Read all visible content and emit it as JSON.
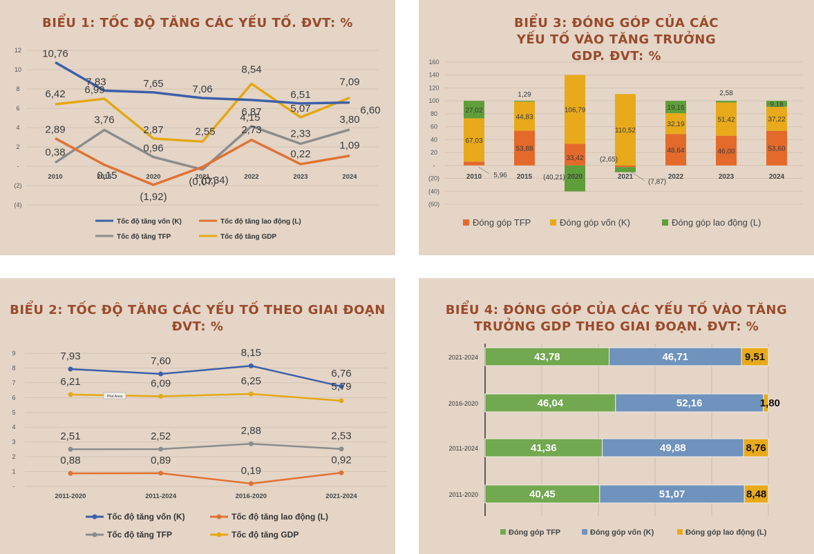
{
  "colors": {
    "panel_bg": "#e4d5c7",
    "title": "#9a4a2a",
    "capital": "#3c5fa8",
    "labor": "#e07232",
    "tfp": "#8c8c8c",
    "gdp": "#e3a812",
    "c_tfp": "#e36a2b",
    "c_capital": "#e8aa1a",
    "c_labor": "#5f9e3a",
    "h_tfp": "#72a850",
    "h_capital": "#6f93bd",
    "h_labor": "#e8aa1a"
  },
  "chart_data": [
    {
      "id": "c1",
      "type": "line",
      "title": "BIỂU 1: TỐC ĐỘ TĂNG CÁC YẾU TỐ. ĐVT: %",
      "categories": [
        "2010",
        "2015",
        "2020",
        "2021",
        "2022",
        "2023",
        "2024"
      ],
      "y_ticks": [
        "12",
        "10",
        "8",
        "6",
        "4",
        "2",
        "-",
        "(2)",
        "(4)"
      ],
      "ylim": [
        -4,
        12
      ],
      "series": [
        {
          "name": "Tốc độ tăng vốn (K)",
          "color_key": "capital",
          "values": [
            10.76,
            7.83,
            7.65,
            7.06,
            6.87,
            6.51,
            6.6
          ],
          "labels": [
            "10,76",
            "7,83",
            "7,65",
            "7,06",
            "6,87",
            "6,51",
            "6,60"
          ]
        },
        {
          "name": "Tốc độ tăng lao động (L)",
          "color_key": "labor",
          "values": [
            2.89,
            0.15,
            -1.92,
            -0.07,
            2.73,
            0.22,
            1.09
          ],
          "labels": [
            "2,89",
            "0,15",
            "(1,92)",
            "(0,07)",
            "2,73",
            "0,22",
            "1,09"
          ]
        },
        {
          "name": "Tốc độ tăng TFP",
          "color_key": "tfp",
          "values": [
            0.38,
            3.76,
            0.96,
            -0.34,
            4.15,
            2.33,
            3.8
          ],
          "labels": [
            "0,38",
            "3,76",
            "0,96",
            "(0,34)",
            "4,15",
            "2,33",
            "3,80"
          ]
        },
        {
          "name": "Tốc độ tăng GDP",
          "color_key": "gdp",
          "values": [
            6.42,
            6.99,
            2.87,
            2.55,
            8.54,
            5.07,
            7.09
          ],
          "labels": [
            "6,42",
            "6,99",
            "2,87",
            "2,55",
            "8,54",
            "5,07",
            "7,09"
          ]
        }
      ],
      "legend": [
        "Tốc độ tăng vốn (K)",
        "Tốc độ tăng lao động (L)",
        "Tốc độ tăng TFP",
        "Tốc độ tăng GDP"
      ]
    },
    {
      "id": "c2",
      "type": "line",
      "title": "BIỂU 2: TỐC ĐỘ TĂNG CÁC YẾU TỐ THEO GIAI ĐOẠN ĐVT: %",
      "categories": [
        "2011-2020",
        "2011-2024",
        "2016-2020",
        "2021-2024"
      ],
      "y_ticks": [
        "9",
        "8",
        "7",
        "6",
        "5",
        "4",
        "3",
        "2",
        "1",
        "-"
      ],
      "ylim": [
        0,
        9
      ],
      "series": [
        {
          "name": "Tốc độ tăng vốn (K)",
          "color_key": "capital",
          "values": [
            7.93,
            7.6,
            8.15,
            6.76
          ],
          "labels": [
            "7,93",
            "7,60",
            "8,15",
            "6,76"
          ]
        },
        {
          "name": "Tốc độ tăng lao động (L)",
          "color_key": "labor",
          "values": [
            0.88,
            0.89,
            0.19,
            0.92
          ],
          "labels": [
            "0,88",
            "0,89",
            "0,19",
            "0,92"
          ]
        },
        {
          "name": "Tốc độ tăng TFP",
          "color_key": "tfp",
          "values": [
            2.51,
            2.52,
            2.88,
            2.53
          ],
          "labels": [
            "2,51",
            "2,52",
            "2,88",
            "2,53"
          ]
        },
        {
          "name": "Tốc độ tăng GDP",
          "color_key": "gdp",
          "values": [
            6.21,
            6.09,
            6.25,
            5.79
          ],
          "labels": [
            "6,21",
            "6,09",
            "6,25",
            "5,79"
          ]
        }
      ],
      "annotation": "Plot Area",
      "legend": [
        "Tốc độ tăng vốn (K)",
        "Tốc độ tăng lao động (L)",
        "Tốc độ tăng TFP",
        "Tốc độ tăng GDP"
      ]
    },
    {
      "id": "c3",
      "type": "bar",
      "stacked": true,
      "title": "BIỂU 3: ĐÓNG GÓP CỦA CÁC YẾU TỐ VÀO TĂNG TRƯỞNG GDP. ĐVT: %",
      "categories": [
        "2010",
        "2015",
        "2020",
        "2021",
        "2022",
        "2023",
        "2024"
      ],
      "y_ticks": [
        "160",
        "140",
        "120",
        "100",
        "80",
        "60",
        "40",
        "20",
        "-",
        "(20)",
        "(40)",
        "(60)"
      ],
      "ylim": [
        -60,
        160
      ],
      "series": [
        {
          "name": "Đóng góp TFP",
          "color_key": "c_tfp",
          "values": [
            5.96,
            53.88,
            33.42,
            -2.65,
            48.64,
            46.0,
            53.6
          ],
          "labels": [
            "5,96",
            "53,88",
            "33,42",
            "(2,65)",
            "48,64",
            "46,00",
            "53,60"
          ]
        },
        {
          "name": "Đóng góp vốn (K)",
          "color_key": "c_capital",
          "values": [
            67.03,
            44.83,
            106.79,
            110.52,
            32.19,
            51.42,
            37.22
          ],
          "labels": [
            "67,03",
            "44,83",
            "106,79",
            "110,52",
            "32,19",
            "51,42",
            "37,22"
          ]
        },
        {
          "name": "Đóng góp lao động (L)",
          "color_key": "c_labor",
          "values": [
            27.02,
            1.29,
            -40.21,
            -7.87,
            19.16,
            2.58,
            9.18
          ],
          "labels": [
            "27,02",
            "1,29",
            "(40,21)",
            "(7,87)",
            "19,16",
            "2,58",
            "9,18"
          ]
        }
      ],
      "legend": [
        "Đóng góp TFP",
        "Đóng góp vốn (K)",
        "Đóng góp lao động (L)"
      ]
    },
    {
      "id": "c4",
      "type": "bar",
      "orientation": "horizontal",
      "stacked": true,
      "title": "BIỂU 4: ĐÓNG GÓP CỦA CÁC YẾU TỐ VÀO TĂNG TRƯỞNG GDP THEO GIAI ĐOẠN. ĐVT: %",
      "categories": [
        "2021-2024",
        "2016-2020",
        "2011-2024",
        "2011-2020"
      ],
      "xlim": [
        0,
        100
      ],
      "series": [
        {
          "name": "Đóng góp TFP",
          "color_key": "h_tfp",
          "values": [
            43.78,
            46.04,
            41.36,
            40.45
          ],
          "labels": [
            "43,78",
            "46,04",
            "41,36",
            "40,45"
          ]
        },
        {
          "name": "Đóng góp vốn (K)",
          "color_key": "h_capital",
          "values": [
            46.71,
            52.16,
            49.88,
            51.07
          ],
          "labels": [
            "46,71",
            "52,16",
            "49,88",
            "51,07"
          ]
        },
        {
          "name": "Đóng góp lao động (L)",
          "color_key": "h_labor",
          "values": [
            9.51,
            1.8,
            8.76,
            8.48
          ],
          "labels": [
            "9,51",
            "1,80",
            "8,76",
            "8,48"
          ]
        }
      ],
      "legend": [
        "Đóng góp TFP",
        "Đóng góp vốn (K)",
        "Đóng góp lao động (L)"
      ]
    }
  ]
}
